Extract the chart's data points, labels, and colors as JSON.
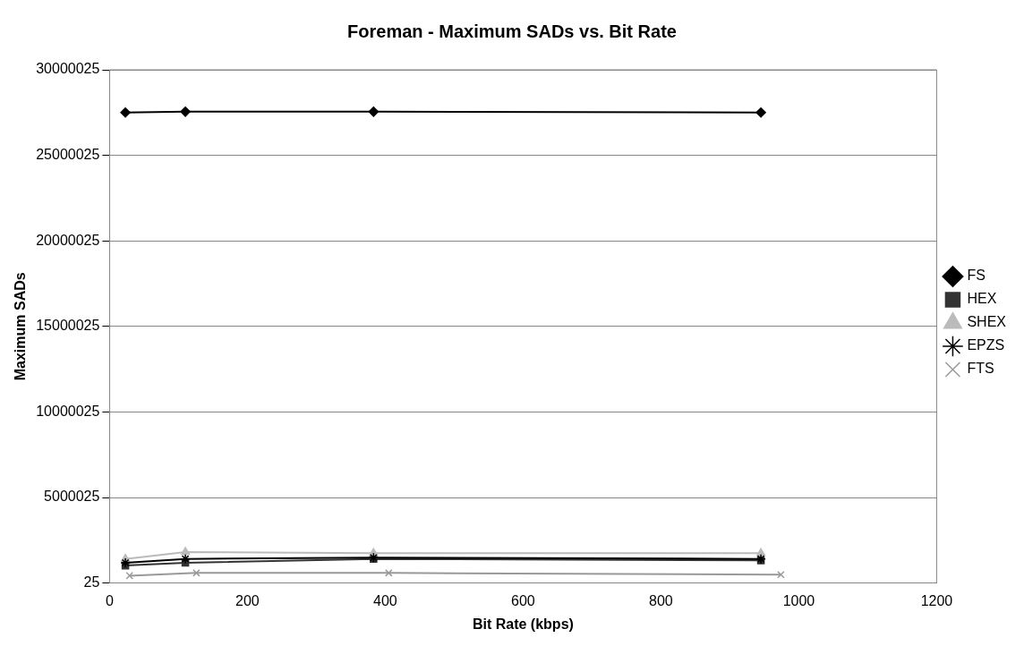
{
  "chart_data": {
    "type": "line",
    "title": "Foreman - Maximum SADs vs. Bit Rate",
    "xlabel": "Bit Rate (kbps)",
    "ylabel": "Maximum SADs",
    "xlim": [
      0,
      1200
    ],
    "xticks": [
      0,
      200,
      400,
      600,
      800,
      1000,
      1200
    ],
    "ylim": [
      25,
      30000025
    ],
    "yticks": [
      25,
      5000025,
      10000025,
      15000025,
      20000025,
      25000025,
      30000025
    ],
    "grid": "y",
    "legend": "right",
    "line_style": "solid",
    "series": [
      {
        "name": "FS",
        "color": "#000000",
        "marker": "diamond",
        "x": [
          23,
          110,
          383,
          945
        ],
        "values": [
          27500000,
          27550000,
          27550000,
          27500000
        ]
      },
      {
        "name": "HEX",
        "color": "#333333",
        "marker": "square",
        "x": [
          23,
          110,
          383,
          945
        ],
        "values": [
          1020000,
          1180000,
          1410000,
          1320000
        ]
      },
      {
        "name": "SHEX",
        "color": "#bbbbbb",
        "marker": "triangle",
        "x": [
          23,
          110,
          383,
          945
        ],
        "values": [
          1410000,
          1810000,
          1740000,
          1740000
        ]
      },
      {
        "name": "EPZS",
        "color": "#000000",
        "marker": "cross",
        "x": [
          23,
          110,
          383,
          945
        ],
        "values": [
          1180000,
          1410000,
          1480000,
          1410000
        ]
      },
      {
        "name": "FTS",
        "color": "#999999",
        "marker": "cross",
        "x": [
          29,
          126,
          405,
          974
        ],
        "values": [
          430000,
          590000,
          590000,
          490000
        ]
      }
    ]
  }
}
